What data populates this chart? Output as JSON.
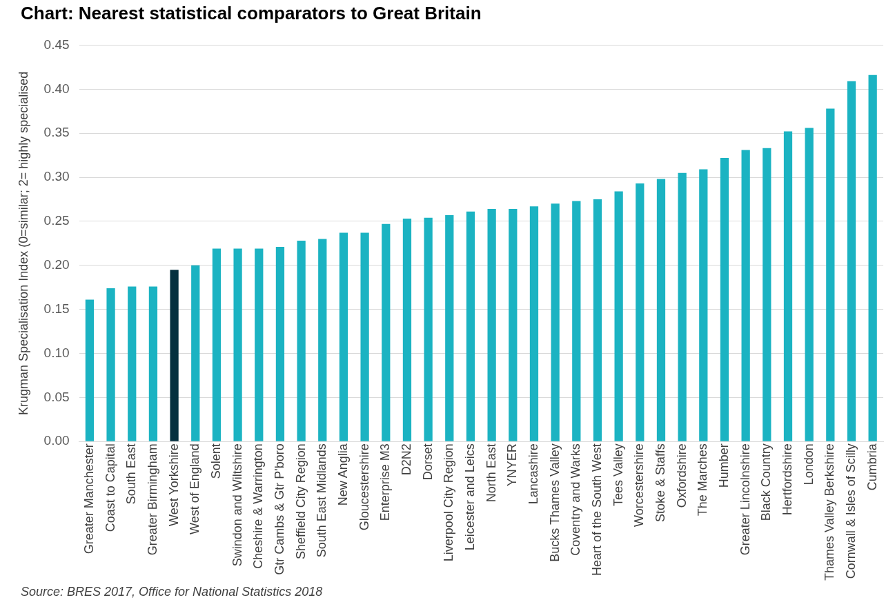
{
  "chart_data": {
    "type": "bar",
    "title": "Chart: Nearest statistical comparators to Great Britain",
    "ylabel": "Krugman Specialisation Index (0=similar; 2= highly specialised",
    "categories": [
      "Greater Manchester",
      "Coast to Capital",
      "South East",
      "Greater Birmingham",
      "West Yorkshire",
      "West of England",
      "Solent",
      "Swindon and Wiltshire",
      "Cheshire & Warrington",
      "Gtr Cambs & Gtr P'boro",
      "Sheffield City Region",
      "South East Midlands",
      "New Anglia",
      "Gloucestershire",
      "Enterprise M3",
      "D2N2",
      "Dorset",
      "Liverpool City Region",
      "Leicester and Leics",
      "North East",
      "YNYER",
      "Lancashire",
      "Bucks Thames Valley",
      "Coventry and Warks",
      "Heart of the South West",
      "Tees Valley",
      "Worcestershire",
      "Stoke & Staffs",
      "Oxfordshire",
      "The Marches",
      "Humber",
      "Greater Lincolnshire",
      "Black Country",
      "Hertfordshire",
      "London",
      "Thames Valley Berkshire",
      "Cornwall & Isles of Scilly",
      "Cumbria"
    ],
    "values": [
      0.161,
      0.174,
      0.176,
      0.176,
      0.195,
      0.2,
      0.219,
      0.219,
      0.219,
      0.221,
      0.228,
      0.23,
      0.237,
      0.237,
      0.247,
      0.253,
      0.254,
      0.257,
      0.261,
      0.264,
      0.264,
      0.267,
      0.27,
      0.273,
      0.275,
      0.284,
      0.293,
      0.298,
      0.305,
      0.309,
      0.322,
      0.331,
      0.333,
      0.352,
      0.356,
      0.378,
      0.409,
      0.416
    ],
    "colors": [
      "#1bb3c2",
      "#1bb3c2",
      "#1bb3c2",
      "#1bb3c2",
      "#04303f",
      "#1bb3c2",
      "#1bb3c2",
      "#1bb3c2",
      "#1bb3c2",
      "#1bb3c2",
      "#1bb3c2",
      "#1bb3c2",
      "#1bb3c2",
      "#1bb3c2",
      "#1bb3c2",
      "#1bb3c2",
      "#1bb3c2",
      "#1bb3c2",
      "#1bb3c2",
      "#1bb3c2",
      "#1bb3c2",
      "#1bb3c2",
      "#1bb3c2",
      "#1bb3c2",
      "#1bb3c2",
      "#1bb3c2",
      "#1bb3c2",
      "#1bb3c2",
      "#1bb3c2",
      "#1bb3c2",
      "#1bb3c2",
      "#1bb3c2",
      "#1bb3c2",
      "#1bb3c2",
      "#1bb3c2",
      "#1bb3c2",
      "#1bb3c2",
      "#1bb3c2"
    ],
    "ylim": [
      0,
      0.45
    ],
    "yticks": [
      {
        "value": 0,
        "label": "0.00"
      },
      {
        "value": 0.05,
        "label": "0.05"
      },
      {
        "value": 0.1,
        "label": "0.10"
      },
      {
        "value": 0.15,
        "label": "0.15"
      },
      {
        "value": 0.2,
        "label": "0.20"
      },
      {
        "value": 0.25,
        "label": "0.25"
      },
      {
        "value": 0.3,
        "label": "0.30"
      },
      {
        "value": 0.35,
        "label": "0.35"
      },
      {
        "value": 0.4,
        "label": "0.40"
      },
      {
        "value": 0.45,
        "label": "0.45"
      }
    ],
    "grid": "y",
    "legend": false,
    "annotations": [
      "Source: BRES 2017, Office for National Statistics 2018"
    ]
  }
}
